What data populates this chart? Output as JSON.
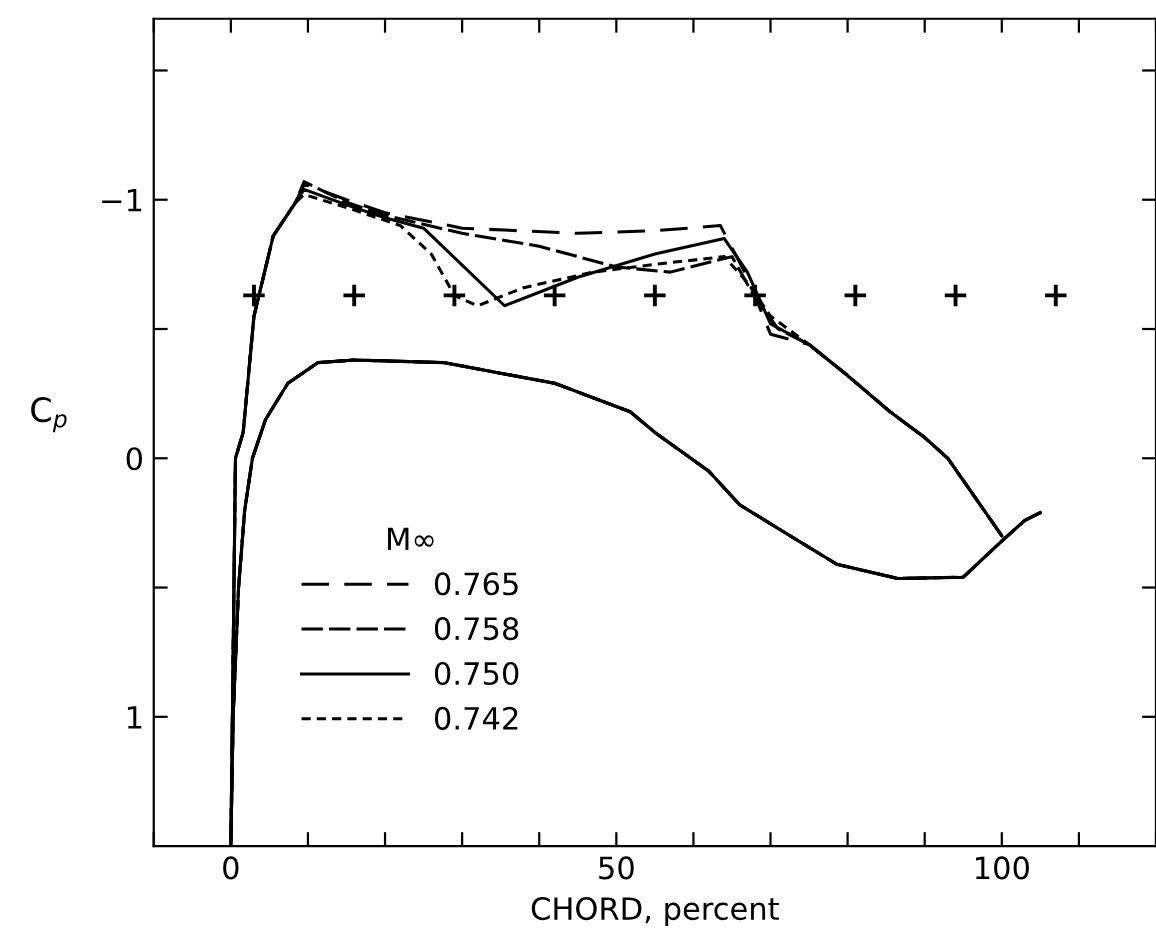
{
  "chart_data": {
    "type": "line",
    "xlabel": "CHORD, percent",
    "ylabel": "C$_{p}$",
    "legend_title": "M∞",
    "legend": "bottom left",
    "grid": false,
    "xlim": [
      -10,
      120
    ],
    "ylim": [
      1.5,
      -1.7
    ],
    "xticks": [
      {
        "value": -10,
        "label": null
      },
      0,
      {
        "value": 10,
        "label": null
      },
      {
        "value": 20,
        "label": null
      },
      {
        "value": 30,
        "label": null
      },
      {
        "value": 40,
        "label": null
      },
      50,
      {
        "value": 60,
        "label": null
      },
      {
        "value": 70,
        "label": null
      },
      {
        "value": 80,
        "label": null
      },
      {
        "value": 90,
        "label": null
      },
      100,
      {
        "value": 110,
        "label": null
      },
      {
        "value": 120,
        "label": null
      }
    ],
    "yticks": [
      {
        "value": -1.5,
        "label": null
      },
      {
        "value": -1,
        "label": "−1"
      },
      {
        "value": -0.5,
        "label": null
      },
      0,
      {
        "value": 0.5,
        "label": null
      },
      1
    ],
    "series": [
      {
        "name": "0.765",
        "color": "#000000",
        "line_style": "dashed",
        "marker": "none",
        "x": [
          105,
          103,
          100,
          95,
          86.5,
          78.6,
          72,
          66,
          62,
          55,
          51.8,
          42,
          27.6,
          16,
          11.3,
          7.4,
          4.5,
          2.8,
          1.8,
          1,
          0.3,
          0,
          0.2,
          0.4,
          0.6,
          1.6,
          3,
          5.5,
          8.4,
          9.5,
          15,
          20,
          30,
          45,
          55,
          63.5,
          67,
          70,
          75,
          80,
          85.5,
          90,
          93,
          100
        ],
        "values": [
          0.21,
          0.24,
          0.32,
          0.46,
          0.465,
          0.41,
          0.29,
          0.18,
          0.05,
          -0.1,
          -0.18,
          -0.29,
          -0.37,
          -0.38,
          -0.37,
          -0.29,
          -0.15,
          0,
          0.2,
          0.5,
          1.0,
          1.5,
          1.0,
          0.5,
          0,
          -0.1,
          -0.55,
          -0.86,
          -0.99,
          -1.06,
          -1.0,
          -0.95,
          -0.89,
          -0.87,
          -0.88,
          -0.9,
          -0.7,
          -0.48,
          -0.44,
          -0.32,
          -0.18,
          -0.08,
          0,
          0.3
        ]
      },
      {
        "name": "0.758",
        "color": "#000000",
        "line_style": "dashed",
        "marker": "none",
        "x": [
          105,
          103,
          100,
          95,
          86.5,
          78.6,
          72,
          66,
          62,
          55,
          51.8,
          42,
          27.6,
          16,
          11.3,
          7.4,
          4.5,
          2.8,
          1.8,
          1,
          0.3,
          0,
          0.2,
          0.4,
          0.6,
          1.6,
          3,
          5.5,
          8.4,
          9.5,
          15,
          20,
          30,
          40,
          50,
          57,
          65,
          68,
          71,
          75,
          80,
          85.5,
          90,
          93,
          100
        ],
        "values": [
          0.21,
          0.24,
          0.32,
          0.46,
          0.465,
          0.41,
          0.29,
          0.18,
          0.05,
          -0.1,
          -0.18,
          -0.29,
          -0.37,
          -0.38,
          -0.37,
          -0.29,
          -0.15,
          0,
          0.2,
          0.5,
          1.0,
          1.5,
          1.0,
          0.5,
          0,
          -0.1,
          -0.55,
          -0.86,
          -0.99,
          -1.07,
          -0.99,
          -0.94,
          -0.87,
          -0.82,
          -0.74,
          -0.72,
          -0.78,
          -0.62,
          -0.5,
          -0.44,
          -0.32,
          -0.18,
          -0.08,
          0,
          0.3
        ]
      },
      {
        "name": "0.750",
        "color": "#000000",
        "line_style": "solid",
        "marker": "none",
        "x": [
          105,
          103,
          100,
          95,
          86.5,
          78.6,
          72,
          66,
          62,
          55,
          51.8,
          42,
          27.6,
          16,
          11.3,
          7.4,
          4.5,
          2.8,
          1.8,
          1,
          0.3,
          0,
          0.2,
          0.4,
          0.6,
          1.6,
          3,
          5.5,
          8.4,
          9.5,
          15,
          20,
          25,
          35.5,
          45,
          55,
          64,
          67,
          70,
          75,
          80,
          85.5,
          90,
          93,
          100
        ],
        "values": [
          0.21,
          0.24,
          0.32,
          0.46,
          0.465,
          0.41,
          0.29,
          0.18,
          0.05,
          -0.1,
          -0.18,
          -0.29,
          -0.37,
          -0.38,
          -0.37,
          -0.29,
          -0.15,
          0,
          0.2,
          0.5,
          1.0,
          1.5,
          1.0,
          0.5,
          0,
          -0.1,
          -0.55,
          -0.86,
          -0.99,
          -1.04,
          -0.98,
          -0.93,
          -0.89,
          -0.59,
          -0.7,
          -0.79,
          -0.85,
          -0.72,
          -0.52,
          -0.44,
          -0.32,
          -0.18,
          -0.08,
          0,
          0.3
        ]
      },
      {
        "name": "0.742",
        "color": "#000000",
        "line_style": "dashed",
        "marker": "none",
        "x": [
          105,
          103,
          100,
          95,
          86.5,
          78.6,
          72,
          66,
          62,
          55,
          51.8,
          42,
          27.6,
          16,
          11.3,
          7.4,
          4.5,
          2.8,
          1.8,
          1,
          0.3,
          0,
          0.2,
          0.4,
          0.6,
          1.6,
          3,
          5.5,
          8.4,
          9.5,
          15,
          22,
          26,
          29,
          32,
          38,
          47,
          55,
          64,
          67,
          70,
          75,
          80,
          85.5,
          90,
          93,
          100
        ],
        "values": [
          0.21,
          0.24,
          0.32,
          0.46,
          0.465,
          0.41,
          0.29,
          0.18,
          0.05,
          -0.1,
          -0.18,
          -0.29,
          -0.37,
          -0.38,
          -0.37,
          -0.29,
          -0.15,
          0,
          0.2,
          0.5,
          1.0,
          1.5,
          1.0,
          0.5,
          0,
          -0.1,
          -0.55,
          -0.86,
          -0.99,
          -1.02,
          -0.97,
          -0.9,
          -0.79,
          -0.63,
          -0.59,
          -0.66,
          -0.72,
          -0.75,
          -0.78,
          -0.68,
          -0.55,
          -0.44,
          -0.32,
          -0.18,
          -0.08,
          0,
          0.3
        ]
      },
      {
        "type": "scatter",
        "color": "#000000",
        "marker": "cross",
        "x": [
          3,
          16,
          29,
          42,
          55,
          68,
          81,
          94,
          107
        ],
        "values": [
          -0.63,
          -0.63,
          -0.63,
          -0.63,
          -0.63,
          -0.63,
          -0.63,
          -0.63,
          -0.63
        ]
      }
    ]
  }
}
